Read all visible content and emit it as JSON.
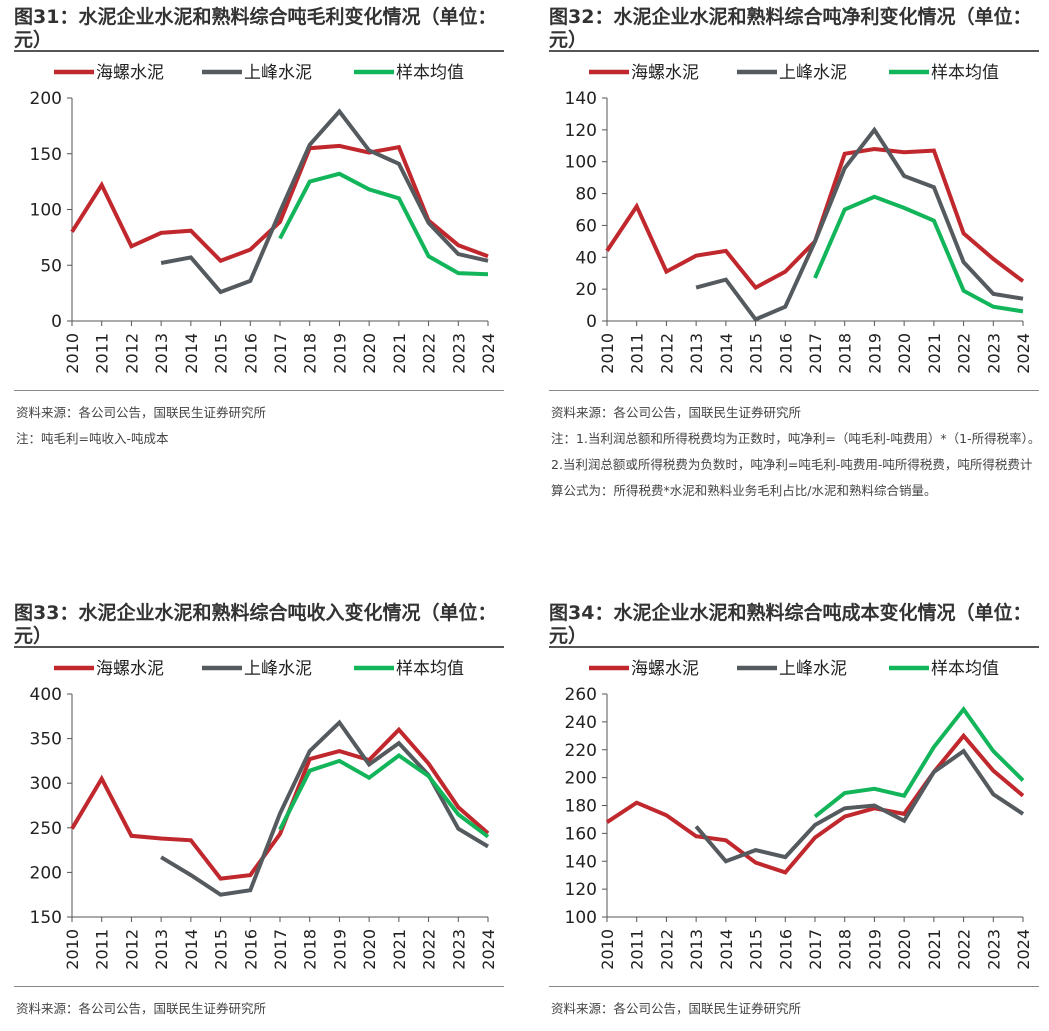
{
  "colors": {
    "hailuo": "#c0282d",
    "shangfeng": "#555a5f",
    "avg": "#13b55a"
  },
  "panels": [
    {
      "title": "图31：水泥企业水泥和熟料综合吨毛利变化情况（单位：元）",
      "source": "资料来源：各公司公告，国联民生证券研究所",
      "notes": [
        "注：吨毛利=吨收入-吨成本"
      ]
    },
    {
      "title": "图32：水泥企业水泥和熟料综合吨净利变化情况（单位：元）",
      "source": "资料来源：各公司公告，国联民生证券研究所",
      "notes": [
        "注：1.当利润总额和所得税费均为正数时，吨净利=（吨毛利-吨费用）*（1-所得税率）。",
        "2.当利润总额或所得税费为负数时，吨净利=吨毛利-吨费用-吨所得税费，吨所得税费计算公式为：所得税费*水泥和熟料业务毛利占比/水泥和熟料综合销量。"
      ]
    },
    {
      "title": "图33：水泥企业水泥和熟料综合吨收入变化情况（单位：元）",
      "source": "资料来源：各公司公告，国联民生证券研究所",
      "notes": []
    },
    {
      "title": "图34：水泥企业水泥和熟料综合吨成本变化情况（单位：元）",
      "source": "资料来源：各公司公告，国联民生证券研究所",
      "notes": []
    }
  ],
  "chart_data": [
    {
      "type": "line",
      "title": "图31：水泥企业水泥和熟料综合吨毛利变化情况（单位：元）",
      "categories": [
        "2010",
        "2011",
        "2012",
        "2013",
        "2014",
        "2015",
        "2016",
        "2017",
        "2018",
        "2019",
        "2020",
        "2021",
        "2022",
        "2023",
        "2024"
      ],
      "ylim": [
        0,
        200
      ],
      "yticks": [
        0,
        50,
        100,
        150,
        200
      ],
      "legend": "top",
      "series": [
        {
          "name": "海螺水泥",
          "color": "#c0282d",
          "values": [
            80,
            122,
            67,
            79,
            81,
            54,
            64,
            89,
            155,
            157,
            151,
            156,
            90,
            68,
            58
          ]
        },
        {
          "name": "上峰水泥",
          "color": "#555a5f",
          "values": [
            null,
            null,
            null,
            52,
            57,
            26,
            36,
            98,
            158,
            188,
            153,
            141,
            88,
            60,
            54
          ]
        },
        {
          "name": "样本均值",
          "color": "#13b55a",
          "values": [
            null,
            null,
            null,
            null,
            null,
            null,
            null,
            74,
            125,
            132,
            118,
            110,
            58,
            43,
            42
          ]
        }
      ]
    },
    {
      "type": "line",
      "title": "图32：水泥企业水泥和熟料综合吨净利变化情况（单位：元）",
      "categories": [
        "2010",
        "2011",
        "2012",
        "2013",
        "2014",
        "2015",
        "2016",
        "2017",
        "2018",
        "2019",
        "2020",
        "2021",
        "2022",
        "2023",
        "2024"
      ],
      "ylim": [
        0,
        140
      ],
      "yticks": [
        0,
        20,
        40,
        60,
        80,
        100,
        120,
        140
      ],
      "legend": "top",
      "series": [
        {
          "name": "海螺水泥",
          "color": "#c0282d",
          "values": [
            44,
            72,
            31,
            41,
            44,
            21,
            31,
            50,
            105,
            108,
            106,
            107,
            55,
            39,
            25
          ]
        },
        {
          "name": "上峰水泥",
          "color": "#555a5f",
          "values": [
            null,
            null,
            null,
            21,
            26,
            1,
            9,
            50,
            96,
            120,
            91,
            84,
            37,
            17,
            14
          ]
        },
        {
          "name": "样本均值",
          "color": "#13b55a",
          "values": [
            null,
            null,
            null,
            null,
            null,
            null,
            null,
            27,
            70,
            78,
            71,
            63,
            19,
            9,
            6
          ]
        }
      ]
    },
    {
      "type": "line",
      "title": "图33：水泥企业水泥和熟料综合吨收入变化情况（单位：元）",
      "categories": [
        "2010",
        "2011",
        "2012",
        "2013",
        "2014",
        "2015",
        "2016",
        "2017",
        "2018",
        "2019",
        "2020",
        "2021",
        "2022",
        "2023",
        "2024"
      ],
      "ylim": [
        150,
        400
      ],
      "yticks": [
        150,
        200,
        250,
        300,
        350,
        400
      ],
      "legend": "top",
      "series": [
        {
          "name": "海螺水泥",
          "color": "#c0282d",
          "values": [
            249,
            305,
            241,
            238,
            236,
            193,
            197,
            243,
            327,
            336,
            326,
            360,
            322,
            273,
            244
          ]
        },
        {
          "name": "上峰水泥",
          "color": "#555a5f",
          "values": [
            null,
            null,
            null,
            217,
            197,
            175,
            180,
            266,
            336,
            368,
            321,
            345,
            309,
            249,
            229
          ]
        },
        {
          "name": "样本均值",
          "color": "#13b55a",
          "values": [
            null,
            null,
            null,
            null,
            null,
            null,
            null,
            248,
            314,
            325,
            306,
            331,
            308,
            265,
            240
          ]
        }
      ]
    },
    {
      "type": "line",
      "title": "图34：水泥企业水泥和熟料综合吨成本变化情况（单位：元）",
      "categories": [
        "2010",
        "2011",
        "2012",
        "2013",
        "2014",
        "2015",
        "2016",
        "2017",
        "2018",
        "2019",
        "2020",
        "2021",
        "2022",
        "2023",
        "2024"
      ],
      "ylim": [
        100,
        260
      ],
      "yticks": [
        100,
        120,
        140,
        160,
        180,
        200,
        220,
        240,
        260
      ],
      "legend": "top",
      "series": [
        {
          "name": "海螺水泥",
          "color": "#c0282d",
          "values": [
            168,
            182,
            173,
            158,
            155,
            139,
            132,
            157,
            172,
            178,
            174,
            204,
            230,
            205,
            187
          ]
        },
        {
          "name": "上峰水泥",
          "color": "#555a5f",
          "values": [
            null,
            null,
            null,
            165,
            140,
            148,
            143,
            166,
            178,
            180,
            169,
            204,
            219,
            188,
            174
          ]
        },
        {
          "name": "样本均值",
          "color": "#13b55a",
          "values": [
            null,
            null,
            null,
            null,
            null,
            null,
            null,
            172,
            189,
            192,
            187,
            222,
            249,
            219,
            198
          ]
        }
      ]
    }
  ]
}
